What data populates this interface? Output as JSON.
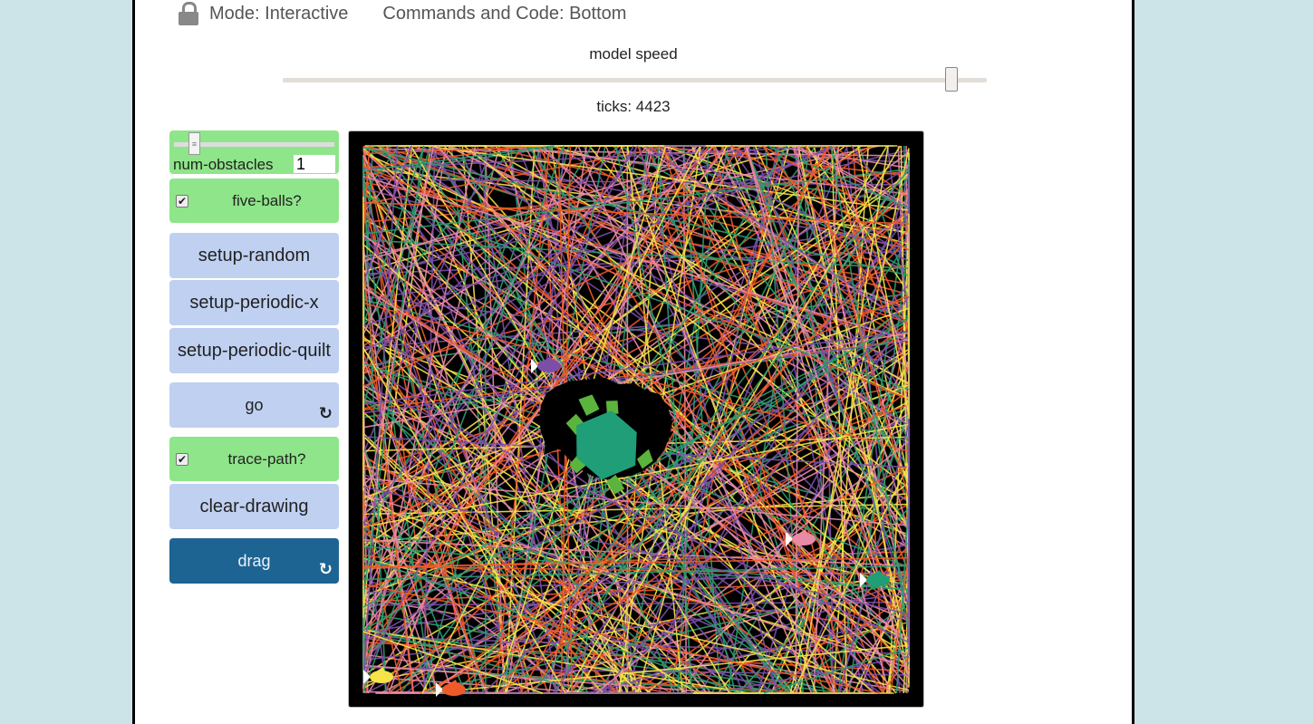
{
  "header": {
    "mode": "Mode: Interactive",
    "commands": "Commands and Code: Bottom"
  },
  "speed": {
    "label": "model speed",
    "level": 0.95
  },
  "ticks": "ticks: 4423",
  "num_obstacles": {
    "label": "num-obstacles",
    "value": "1"
  },
  "switches": {
    "five_balls": {
      "label": "five-balls?",
      "checked": true
    },
    "trace_path": {
      "label": "trace-path?",
      "checked": true
    }
  },
  "buttons": {
    "setup_random": "setup-random",
    "setup_periodic_x": "setup-periodic-x",
    "setup_periodic_quilt": "setup-periodic-quilt",
    "go": "go",
    "clear_drawing": "clear-drawing",
    "drag": "drag"
  },
  "icons": {
    "lock": "lock-icon",
    "forever": "forever-icon"
  },
  "colors": {
    "trace": [
      "#f05a28",
      "#f5e348",
      "#2a9d6e",
      "#7b4fa8",
      "#e98aa6"
    ],
    "turtle_body": "#1f9e78",
    "turtle_limbs": "#5bb53c",
    "fish": [
      "#7b4fa8",
      "#e98aa6",
      "#1f9e78",
      "#f5e348",
      "#f05a28"
    ]
  }
}
